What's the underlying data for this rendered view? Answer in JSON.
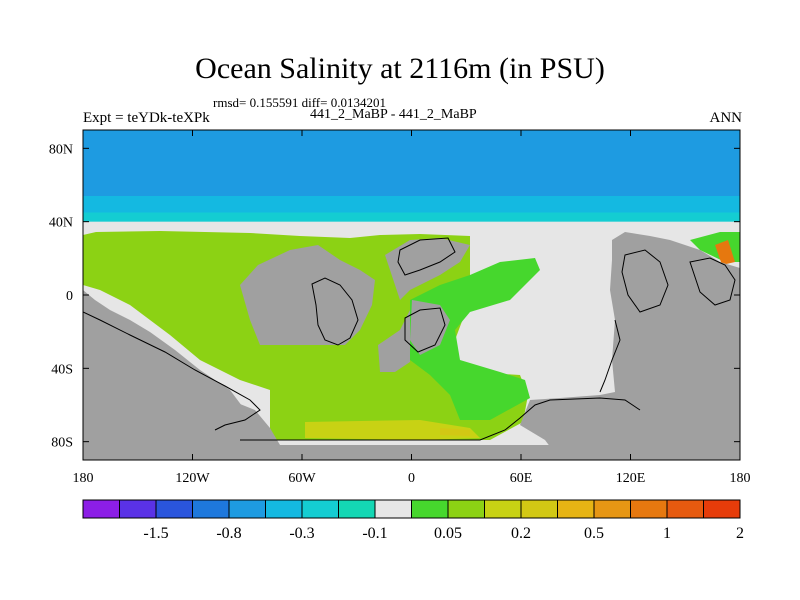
{
  "header": {
    "title": "Ocean Salinity at 2116m (in PSU)",
    "stats": "rmsd= 0.155591 diff= 0.0134201",
    "subtitle": "441_2_MaBP - 441_2_MaBP",
    "left_label": "Expt = teYDk-teXPk",
    "right_label": "ANN"
  },
  "chart_data": {
    "type": "heatmap",
    "title": "Ocean Salinity at 2116m (in PSU)",
    "subtitle": "441_2_MaBP - 441_2_MaBP",
    "annotation": "rmsd= 0.155591 diff= 0.0134201",
    "experiment": "Expt = teYDk-teXPk",
    "season": "ANN",
    "x_range": [
      -180,
      180
    ],
    "y_range": [
      -90,
      90
    ],
    "x_ticks": [
      {
        "value": -180,
        "label": "180"
      },
      {
        "value": -120,
        "label": "120W"
      },
      {
        "value": -60,
        "label": "60W"
      },
      {
        "value": 0,
        "label": "0"
      },
      {
        "value": 60,
        "label": "60E"
      },
      {
        "value": 120,
        "label": "120E"
      },
      {
        "value": 180,
        "label": "180"
      }
    ],
    "y_ticks": [
      {
        "value": 80,
        "label": "80N"
      },
      {
        "value": 40,
        "label": "40N"
      },
      {
        "value": 0,
        "label": "0"
      },
      {
        "value": -40,
        "label": "40S"
      },
      {
        "value": -80,
        "label": "80S"
      }
    ],
    "colorbar": {
      "colors": [
        "#8c1ee6",
        "#5a32e6",
        "#2a55dc",
        "#1e78dc",
        "#1e9be1",
        "#14b9e1",
        "#14cdd2",
        "#14d7b4",
        "#e6e6e6",
        "#46d72d",
        "#8cd214",
        "#c8d214",
        "#d2c814",
        "#e6b414",
        "#e69614",
        "#e6780f",
        "#e65a0f",
        "#e63c0a"
      ],
      "labels": [
        {
          "after_index": 1,
          "label": "-1.5"
        },
        {
          "after_index": 3,
          "label": "-0.8"
        },
        {
          "after_index": 5,
          "label": "-0.3"
        },
        {
          "after_index": 7,
          "label": "-0.1"
        },
        {
          "after_index": 9,
          "label": "0.05"
        },
        {
          "after_index": 11,
          "label": "0.2"
        },
        {
          "after_index": 13,
          "label": "0.5"
        },
        {
          "after_index": 15,
          "label": "1"
        },
        {
          "after_index": 17,
          "label": "2"
        }
      ]
    },
    "land_color": "#a0a0a0",
    "regions": [
      {
        "name": "north-band-deep",
        "color": "#1e9be1",
        "lon": [
          -180,
          180
        ],
        "lat": [
          54,
          90
        ]
      },
      {
        "name": "north-band-mid",
        "color": "#14b9e1",
        "lon": [
          -180,
          180
        ],
        "lat": [
          45,
          54
        ]
      },
      {
        "name": "north-band-light",
        "color": "#14cdd2",
        "lon": [
          -180,
          180
        ],
        "lat": [
          40,
          45
        ]
      }
    ]
  }
}
